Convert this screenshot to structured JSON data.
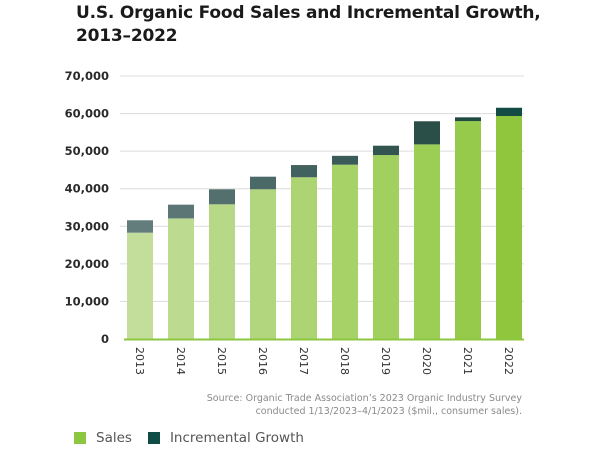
{
  "chart_data": {
    "type": "bar",
    "stacked": true,
    "title": "U.S. Organic Food Sales and Incremental Growth, 2013–2022",
    "title_lines": [
      "U.S. Organic Food Sales and Incremental Growth,",
      "2013–2022"
    ],
    "xlabel": "",
    "ylabel": "",
    "ylim": [
      0,
      70000
    ],
    "yticks": [
      0,
      10000,
      20000,
      30000,
      40000,
      50000,
      60000,
      70000
    ],
    "ytick_labels": [
      "0",
      "10,000",
      "20,000",
      "30,000",
      "40,000",
      "50,000",
      "60,000",
      "70,000"
    ],
    "grid": true,
    "categories": [
      "2013",
      "2014",
      "2015",
      "2016",
      "2017",
      "2018",
      "2019",
      "2020",
      "2021",
      "2022"
    ],
    "series": [
      {
        "name": "Sales",
        "color": "#8dc63f",
        "values": [
          28300,
          32100,
          35850,
          39850,
          43050,
          46400,
          48950,
          51800,
          58000,
          59350
        ]
      },
      {
        "name": "Incremental Growth",
        "color": "#0f4c45",
        "values": [
          3300,
          3650,
          4000,
          3350,
          3250,
          2350,
          2500,
          6150,
          1000,
          2200
        ]
      }
    ],
    "bar_colors": {
      "sales": [
        "#c3de9b",
        "#bddb90",
        "#b7d886",
        "#b2d67d",
        "#acd472",
        "#a7d268",
        "#a2d05f",
        "#9ccd55",
        "#96ca4a",
        "#8fc63e"
      ],
      "growth": [
        "#637d7c",
        "#5b7675",
        "#53706e",
        "#4a6967",
        "#42625f",
        "#3a5b58",
        "#325550",
        "#2a4f49",
        "#214a43",
        "#124c44"
      ]
    },
    "legend": {
      "position": "bottom-left",
      "entries": [
        "Sales",
        "Incremental Growth"
      ]
    },
    "source": [
      "Source: Organic Trade Association’s 2023 Organic Industry Survey",
      "conducted 1/13/2023–4/1/2023 ($mil., consumer sales)."
    ]
  }
}
